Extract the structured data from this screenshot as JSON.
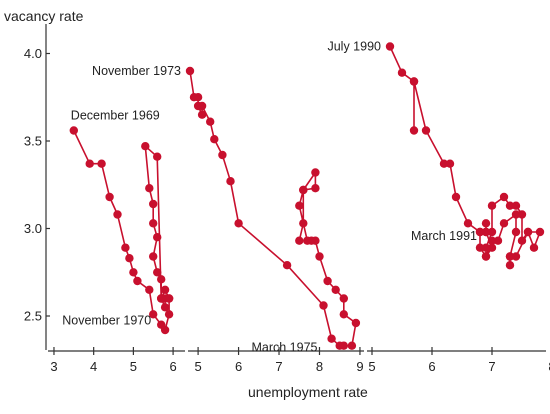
{
  "chart_data": {
    "type": "line",
    "ylabel": "vacancy rate",
    "xlabel": "unemployment rate",
    "ylim": [
      2.3,
      4.1
    ],
    "y_ticks": [
      "4.0",
      "3.5",
      "3.0",
      "2.5"
    ],
    "y_tick_values": [
      4.0,
      3.5,
      3.0,
      2.5
    ],
    "grid": false,
    "series_color": "#c8102e",
    "panels": [
      {
        "xlim": [
          2.9,
          6.3
        ],
        "x_ticks": [
          "3",
          "4",
          "5",
          "6"
        ],
        "x_tick_values": [
          3,
          4,
          5,
          6
        ],
        "series": [
          {
            "x": [
              3.5,
              3.9,
              4.2,
              4.4,
              4.6,
              4.8,
              4.9,
              5.0,
              5.1,
              5.4,
              5.5,
              5.7,
              5.8,
              5.9,
              5.9,
              5.8,
              5.8,
              5.7,
              5.7,
              5.6,
              5.5,
              5.6,
              5.5,
              5.5,
              5.4,
              5.3,
              5.6,
              5.7,
              5.8,
              5.9
            ],
            "y": [
              3.56,
              3.37,
              3.37,
              3.18,
              3.08,
              2.89,
              2.83,
              2.75,
              2.7,
              2.65,
              2.51,
              2.45,
              2.42,
              2.51,
              2.6,
              2.6,
              2.55,
              2.6,
              2.71,
              2.75,
              2.84,
              2.95,
              3.03,
              3.14,
              3.23,
              3.47,
              3.41,
              2.6,
              2.65,
              2.6
            ]
          }
        ],
        "annotations": [
          {
            "text": "December 1969",
            "x": 3.5,
            "y": 3.56
          },
          {
            "text": "November 1970",
            "x": 5.5,
            "y": 2.51
          }
        ]
      },
      {
        "xlim": [
          4.8,
          9.1
        ],
        "x_ticks": [
          "5",
          "6",
          "7",
          "8",
          "9"
        ],
        "x_tick_values": [
          5,
          6,
          7,
          8,
          9
        ],
        "series": [
          {
            "x": [
              4.8,
              4.9,
              5.0,
              5.0,
              5.1,
              5.1,
              5.3,
              5.4,
              5.6,
              5.8,
              6.0,
              7.2,
              8.1,
              8.3,
              8.5,
              8.6,
              8.8,
              8.9,
              8.6,
              8.6,
              8.4,
              8.2,
              8.0,
              7.9,
              7.8,
              7.7,
              7.5,
              7.6,
              7.9,
              7.9,
              7.6,
              7.6,
              7.5
            ],
            "y": [
              3.9,
              3.75,
              3.75,
              3.7,
              3.65,
              3.7,
              3.61,
              3.51,
              3.42,
              3.27,
              3.03,
              2.79,
              2.56,
              2.37,
              2.33,
              2.33,
              2.33,
              2.46,
              2.51,
              2.6,
              2.65,
              2.7,
              2.84,
              2.93,
              2.93,
              2.93,
              3.13,
              3.22,
              3.23,
              3.32,
              3.22,
              3.03,
              2.93
            ]
          }
        ],
        "annotations": [
          {
            "text": "November 1973",
            "x": 4.8,
            "y": 3.9
          },
          {
            "text": "March 1975",
            "x": 8.1,
            "y": 2.37
          }
        ]
      },
      {
        "xlim": [
          4.95,
          7.9
        ],
        "x_ticks": [
          "5",
          "6",
          "7",
          "8"
        ],
        "x_tick_values": [
          5,
          6,
          7,
          8
        ],
        "series": [
          {
            "x": [
              5.3,
              5.5,
              5.7,
              5.7,
              5.7,
              5.9,
              6.2,
              6.3,
              6.4,
              6.6,
              6.8,
              6.9,
              7.0,
              6.9,
              6.9,
              7.0,
              7.0,
              7.2,
              7.3,
              7.4,
              7.5,
              7.5,
              7.6,
              7.7,
              7.8,
              7.6,
              7.4,
              7.3,
              7.3,
              7.3,
              7.4,
              7.4,
              7.2,
              7.1,
              7.0,
              6.9,
              6.8,
              6.8,
              6.9,
              6.9
            ],
            "y": [
              4.04,
              3.89,
              3.84,
              3.56,
              3.84,
              3.56,
              3.37,
              3.37,
              3.18,
              3.03,
              2.98,
              2.98,
              2.89,
              2.84,
              2.89,
              2.98,
              3.13,
              3.18,
              3.13,
              3.13,
              3.08,
              2.93,
              2.98,
              2.89,
              2.98,
              2.98,
              2.84,
              2.84,
              2.79,
              2.84,
              2.98,
              3.08,
              3.03,
              2.93,
              2.93,
              2.84,
              2.89,
              2.98,
              2.98,
              3.03
            ]
          }
        ],
        "annotations": [
          {
            "text": "July 1990",
            "x": 5.3,
            "y": 4.04
          },
          {
            "text": "March 1991",
            "x": 6.9,
            "y": 2.98
          }
        ]
      }
    ]
  }
}
